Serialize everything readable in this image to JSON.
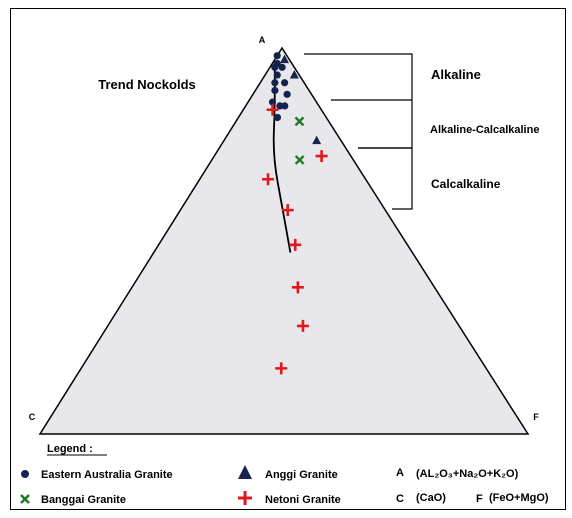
{
  "chart_data": {
    "type": "scatter",
    "diagram": "AFC ternary",
    "corners": {
      "top": "A",
      "left": "C",
      "right": "F"
    },
    "trend_label": "Trend Nockolds",
    "zones": [
      {
        "label": "Alkaline"
      },
      {
        "label": "Alkaline-Calcalkaline"
      },
      {
        "label": "Calcalkaline"
      }
    ],
    "legend_title": "Legend :",
    "series": [
      {
        "name": "Eastern Australia Granite",
        "marker": "circle",
        "color": "#13234d",
        "points": [
          {
            "A": 0.98,
            "C": 0.02,
            "F": 0.0
          },
          {
            "A": 0.96,
            "C": 0.03,
            "F": 0.01
          },
          {
            "A": 0.95,
            "C": 0.04,
            "F": 0.01
          },
          {
            "A": 0.95,
            "C": 0.025,
            "F": 0.025
          },
          {
            "A": 0.93,
            "C": 0.045,
            "F": 0.025
          },
          {
            "A": 0.91,
            "C": 0.06,
            "F": 0.03
          },
          {
            "A": 0.91,
            "C": 0.04,
            "F": 0.05
          },
          {
            "A": 0.89,
            "C": 0.07,
            "F": 0.04
          },
          {
            "A": 0.88,
            "C": 0.05,
            "F": 0.07
          },
          {
            "A": 0.86,
            "C": 0.09,
            "F": 0.05
          },
          {
            "A": 0.85,
            "C": 0.08,
            "F": 0.07
          },
          {
            "A": 0.85,
            "C": 0.07,
            "F": 0.08
          },
          {
            "A": 0.82,
            "C": 0.1,
            "F": 0.08
          }
        ]
      },
      {
        "name": "Anggi Granite",
        "marker": "triangle",
        "color": "#1a2350",
        "points": [
          {
            "A": 0.97,
            "C": 0.01,
            "F": 0.02
          },
          {
            "A": 0.93,
            "C": 0.01,
            "F": 0.06
          },
          {
            "A": 0.76,
            "C": 0.05,
            "F": 0.19
          }
        ]
      },
      {
        "name": "Banggai Granite",
        "marker": "x",
        "color": "#1e7a24",
        "points": [
          {
            "A": 0.81,
            "C": 0.06,
            "F": 0.13
          },
          {
            "A": 0.71,
            "C": 0.11,
            "F": 0.18
          }
        ]
      },
      {
        "name": "Netoni Granite",
        "marker": "plus",
        "color": "#e0191c",
        "points": [
          {
            "A": 0.84,
            "C": 0.1,
            "F": 0.06
          },
          {
            "A": 0.72,
            "C": 0.06,
            "F": 0.22
          },
          {
            "A": 0.66,
            "C": 0.2,
            "F": 0.14
          },
          {
            "A": 0.58,
            "C": 0.2,
            "F": 0.22
          },
          {
            "A": 0.49,
            "C": 0.23,
            "F": 0.28
          },
          {
            "A": 0.38,
            "C": 0.28,
            "F": 0.34
          },
          {
            "A": 0.28,
            "C": 0.32,
            "F": 0.4
          },
          {
            "A": 0.17,
            "C": 0.42,
            "F": 0.41
          }
        ]
      }
    ],
    "trend_curve": [
      {
        "A": 0.95,
        "C": 0.04,
        "F": 0.01
      },
      {
        "A": 0.85,
        "C": 0.09,
        "F": 0.06
      },
      {
        "A": 0.72,
        "C": 0.16,
        "F": 0.12
      },
      {
        "A": 0.58,
        "C": 0.21,
        "F": 0.21
      },
      {
        "A": 0.47,
        "C": 0.25,
        "F": 0.28
      }
    ],
    "formulas": {
      "A": {
        "label": "A",
        "text": "(AL₂O₃+Na₂O+K₂O)"
      },
      "C": {
        "label": "C",
        "text": "(CaO)"
      },
      "F": {
        "label": "F",
        "text": "(FeO+MgO)"
      }
    }
  }
}
